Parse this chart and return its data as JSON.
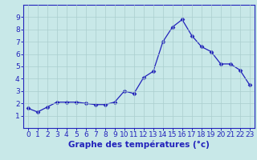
{
  "x": [
    0,
    1,
    2,
    3,
    4,
    5,
    6,
    7,
    8,
    9,
    10,
    11,
    12,
    13,
    14,
    15,
    16,
    17,
    18,
    19,
    20,
    21,
    22,
    23
  ],
  "y": [
    1.6,
    1.3,
    1.7,
    2.1,
    2.1,
    2.1,
    2.0,
    1.9,
    1.9,
    2.1,
    3.0,
    2.8,
    4.1,
    4.6,
    7.0,
    8.2,
    8.8,
    7.5,
    6.6,
    6.2,
    5.2,
    5.2,
    4.7,
    3.5
  ],
  "line_color": "#2222bb",
  "marker": "D",
  "markersize": 2.5,
  "linewidth": 0.9,
  "xlabel": "Graphe des températures (°c)",
  "xlim": [
    -0.5,
    23.5
  ],
  "ylim": [
    0,
    10
  ],
  "yticks": [
    1,
    2,
    3,
    4,
    5,
    6,
    7,
    8,
    9
  ],
  "xticks": [
    0,
    1,
    2,
    3,
    4,
    5,
    6,
    7,
    8,
    9,
    10,
    11,
    12,
    13,
    14,
    15,
    16,
    17,
    18,
    19,
    20,
    21,
    22,
    23
  ],
  "bg_color": "#c8e8e8",
  "grid_color": "#aacece",
  "axis_color": "#2222bb",
  "tick_color": "#2222bb",
  "xlabel_color": "#2222bb",
  "xlabel_fontsize": 7.5,
  "tick_fontsize": 6.5
}
